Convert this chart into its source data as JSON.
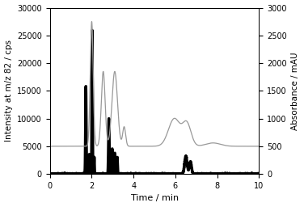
{
  "xlabel": "Time / min",
  "ylabel_left": "Intensity at m/z 82 / cps",
  "ylabel_right": "Absorbance / mAU",
  "xlim": [
    0,
    10
  ],
  "ylim_left": [
    0,
    30000
  ],
  "ylim_right": [
    0,
    3000
  ],
  "yticks_left": [
    0,
    5000,
    10000,
    15000,
    20000,
    25000,
    30000
  ],
  "yticks_right": [
    0,
    500,
    1000,
    1500,
    2000,
    2500,
    3000
  ],
  "xticks": [
    0,
    2,
    4,
    6,
    8,
    10
  ],
  "bold_color": "#000000",
  "thin_color": "#999999",
  "background_color": "#ffffff",
  "linewidth_bold": 2.5,
  "linewidth_thin": 0.9
}
